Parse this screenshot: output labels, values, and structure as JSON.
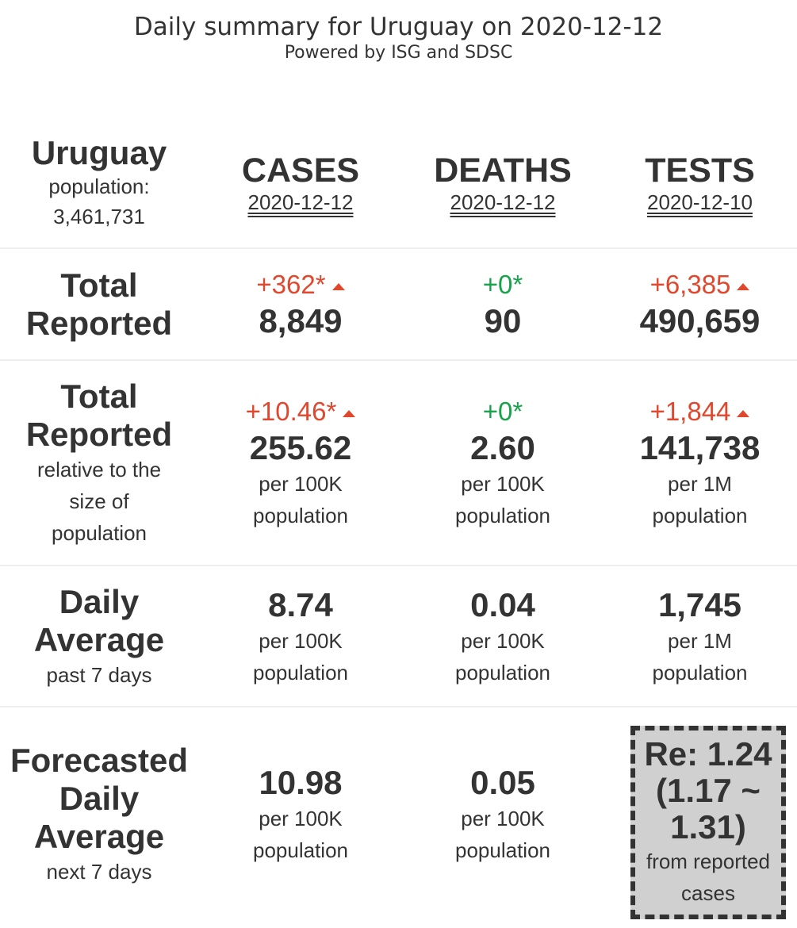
{
  "header": {
    "title": "Daily summary for Uruguay on 2020-12-12",
    "subtitle": "Powered by ISG and SDSC"
  },
  "country": {
    "name": "Uruguay",
    "population_label": "population:",
    "population_value": "3,461,731"
  },
  "columns": [
    {
      "heading": "CASES",
      "date": "2020-12-12"
    },
    {
      "heading": "DEATHS",
      "date": "2020-12-12"
    },
    {
      "heading": "TESTS",
      "date": "2020-12-10"
    }
  ],
  "rows": {
    "total_reported": {
      "label_line1": "Total",
      "label_line2": "Reported",
      "cells": [
        {
          "delta": "+362*",
          "trend": "up",
          "value": "8,849"
        },
        {
          "delta": "+0*",
          "trend": "flat",
          "value": "90"
        },
        {
          "delta": "+6,385",
          "trend": "up",
          "value": "490,659"
        }
      ]
    },
    "relative": {
      "label_line1": "Total",
      "label_line2": "Reported",
      "sub_line1": "relative to the",
      "sub_line2": "size of",
      "sub_line3": "population",
      "cells": [
        {
          "delta": "+10.46*",
          "trend": "up",
          "value": "255.62",
          "unit1": "per 100K",
          "unit2": "population"
        },
        {
          "delta": "+0*",
          "trend": "flat",
          "value": "2.60",
          "unit1": "per 100K",
          "unit2": "population"
        },
        {
          "delta": "+1,844",
          "trend": "up",
          "value": "141,738",
          "unit1": "per 1M",
          "unit2": "population"
        }
      ]
    },
    "daily_average": {
      "label_line1": "Daily",
      "label_line2": "Average",
      "sub_line1": "past 7 days",
      "cells": [
        {
          "value": "8.74",
          "unit1": "per 100K",
          "unit2": "population"
        },
        {
          "value": "0.04",
          "unit1": "per 100K",
          "unit2": "population"
        },
        {
          "value": "1,745",
          "unit1": "per 1M",
          "unit2": "population"
        }
      ]
    },
    "forecast": {
      "label_line1": "Forecasted",
      "label_line2": "Daily",
      "label_line3": "Average",
      "sub_line1": "next 7 days",
      "cells": [
        {
          "value": "10.98",
          "unit1": "per 100K",
          "unit2": "population"
        },
        {
          "value": "0.05",
          "unit1": "per 100K",
          "unit2": "population"
        }
      ],
      "re_box": {
        "line1": "Re: 1.24",
        "line2": "(1.17 ~",
        "line3": "1.31)",
        "sub1": "from reported",
        "sub2": "cases"
      }
    }
  },
  "colors": {
    "increase": "#e0472c",
    "no_change": "#17a34a",
    "text": "#333333",
    "re_box_bg": "#d0d0d0"
  }
}
